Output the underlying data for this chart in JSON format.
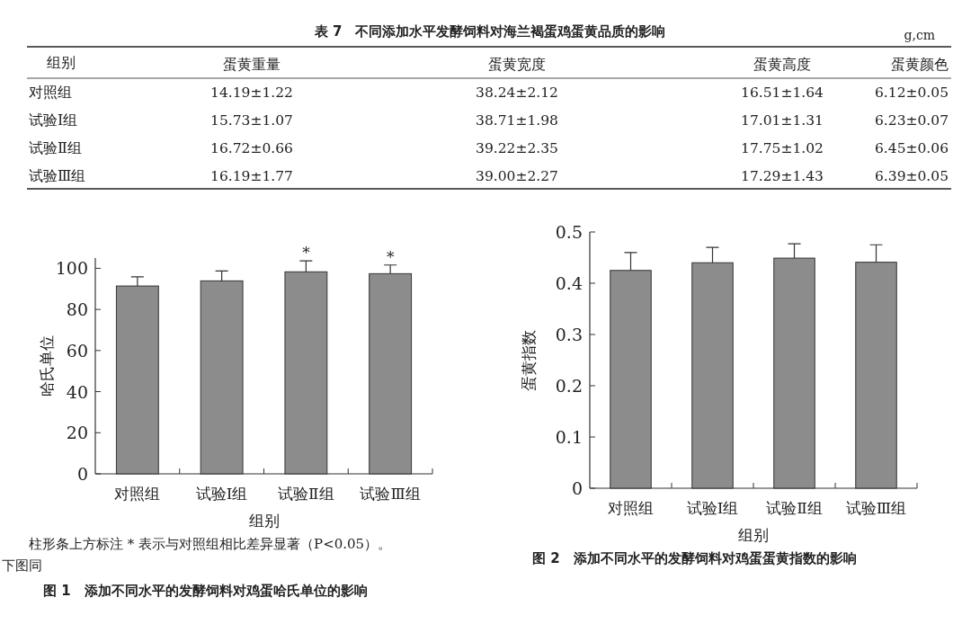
{
  "chart_data": [
    {
      "type": "other",
      "title": "表 7　不同添加水平发酵饲料对海兰褐蛋鸡蛋黄品质的影响",
      "subtitle": "g,cm",
      "ylabel": "组别",
      "categories": [
        "蛋黄重量",
        "蛋黄宽度",
        "蛋黄高度",
        "蛋黄颜色"
      ],
      "y_categories": [
        "对照组",
        "试验Ⅰ组",
        "试验Ⅱ组",
        "试验Ⅲ组"
      ],
      "cell_labels": [
        [
          "14.19±1.22",
          "38.24±2.12",
          "16.51±1.64",
          "6.12±0.05"
        ],
        [
          "15.73±1.07",
          "38.71±1.98",
          "17.01±1.31",
          "6.23±0.07"
        ],
        [
          "16.72±0.66",
          "39.22±2.35",
          "17.75±1.02",
          "6.45±0.06"
        ],
        [
          "16.19±1.77",
          "39.00±2.27",
          "17.29±1.43",
          "6.39±0.05"
        ]
      ]
    },
    {
      "type": "bar",
      "title": "图 1　添加不同水平的发酵饲料对鸡蛋哈氏单位的影响",
      "xlabel": "组别",
      "ylabel": "哈氏单位",
      "categories": [
        "对照组",
        "试验Ⅰ组",
        "试验Ⅱ组",
        "试验Ⅲ组"
      ],
      "values": [
        91.4,
        93.9,
        98.3,
        97.4
      ],
      "errors": [
        4.5,
        4.8,
        5.3,
        4.2
      ],
      "color": "#8c8c8c",
      "ylim": [
        0,
        105
      ],
      "yticks": [
        0,
        20,
        40,
        60,
        80,
        100
      ],
      "annotations": [
        {
          "text": "*",
          "x": "试验Ⅱ组",
          "y": 103.6
        },
        {
          "text": "*",
          "x": "试验Ⅲ组",
          "y": 101.6
        },
        "柱形条上方标注 * 表示与对照组相比差异显著（P<0.05）。下图同"
      ]
    },
    {
      "type": "bar",
      "title": "图 2　添加不同水平的发酵饲料对鸡蛋蛋黄指数的影响",
      "xlabel": "组别",
      "ylabel": "蛋黄指数",
      "categories": [
        "对照组",
        "试验Ⅰ组",
        "试验Ⅱ组",
        "试验Ⅲ组"
      ],
      "values": [
        0.425,
        0.44,
        0.449,
        0.441
      ],
      "errors": [
        0.035,
        0.03,
        0.028,
        0.034
      ],
      "color": "#8c8c8c",
      "ylim": [
        0,
        0.5
      ],
      "yticks": [
        0,
        0.1,
        0.2,
        0.3,
        0.4,
        0.5
      ]
    }
  ]
}
